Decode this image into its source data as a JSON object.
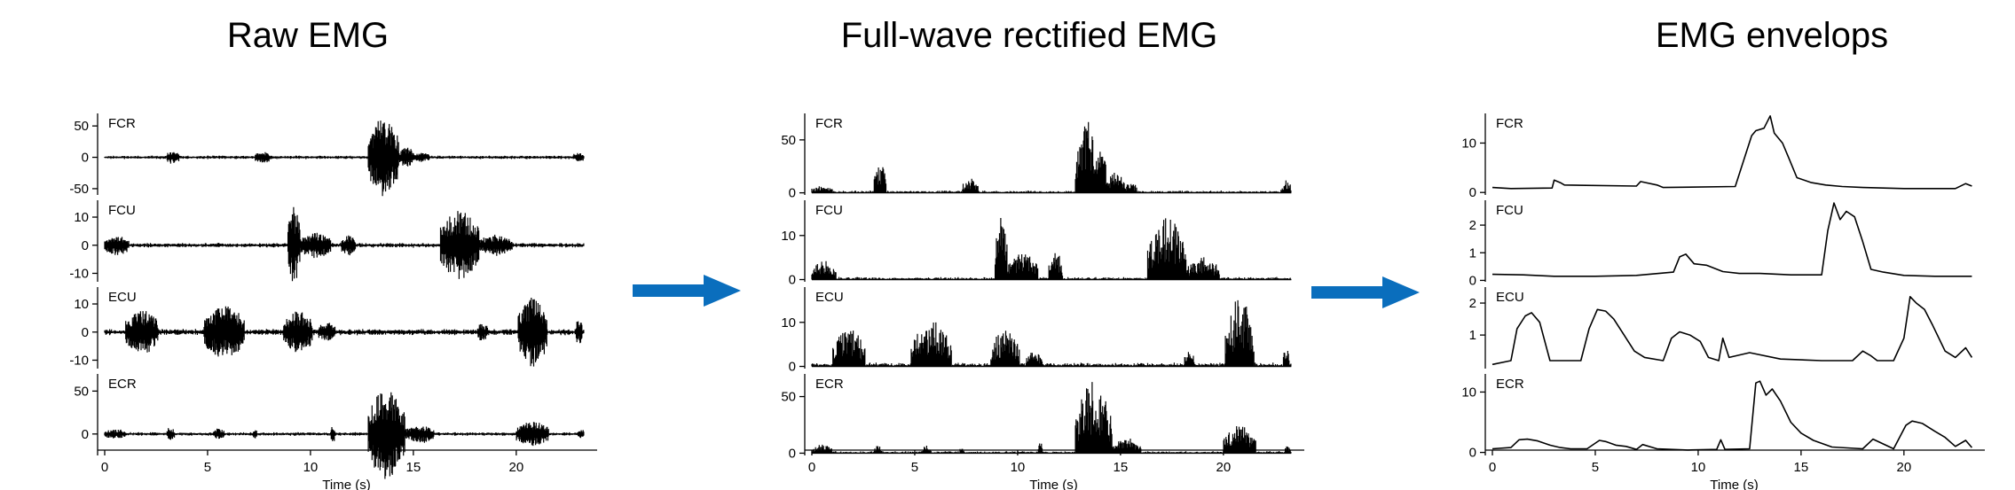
{
  "colors": {
    "trace": "#000000",
    "arrow": "#0a6ebd",
    "axis": "#000000"
  },
  "panels": [
    {
      "title": "Raw EMG"
    },
    {
      "title": "Full-wave rectified EMG"
    },
    {
      "title": "EMG envelops"
    }
  ],
  "chart_data": [
    {
      "type": "line",
      "title": "Raw EMG",
      "xlabel": "Time (s)",
      "xlim": [
        0,
        23.5
      ],
      "xticks": [
        0,
        5,
        10,
        15,
        20
      ],
      "kind": "raw",
      "subplots": [
        {
          "label": "FCR",
          "ylim": [
            -60,
            70
          ],
          "yticks": [
            -50,
            0,
            50
          ],
          "baseline": 0,
          "bursts": [
            [
              3.0,
              3.6,
              8
            ],
            [
              7.3,
              8.1,
              7
            ],
            [
              12.8,
              14.3,
              62
            ],
            [
              14.3,
              15.0,
              14
            ],
            [
              15.0,
              15.8,
              5
            ],
            [
              22.8,
              23.3,
              6
            ]
          ],
          "noise": 2
        },
        {
          "label": "FCU",
          "ylim": [
            -13,
            16
          ],
          "yticks": [
            -10,
            0,
            10
          ],
          "baseline": 0,
          "bursts": [
            [
              0.0,
              1.2,
              3
            ],
            [
              8.9,
              9.5,
              13
            ],
            [
              9.5,
              11.0,
              4
            ],
            [
              11.5,
              12.2,
              3
            ],
            [
              16.3,
              18.2,
              12
            ],
            [
              18.2,
              19.8,
              3
            ]
          ],
          "noise": 0.6
        },
        {
          "label": "ECU",
          "ylim": [
            -13,
            16
          ],
          "yticks": [
            -10,
            0,
            10
          ],
          "baseline": 0,
          "bursts": [
            [
              1.0,
              2.6,
              7
            ],
            [
              4.8,
              6.8,
              8.5
            ],
            [
              8.7,
              10.1,
              6.5
            ],
            [
              10.4,
              11.2,
              2.5
            ],
            [
              18.1,
              18.6,
              2.5
            ],
            [
              20.1,
              21.5,
              12
            ],
            [
              22.9,
              23.2,
              4
            ]
          ],
          "noise": 0.8
        },
        {
          "label": "ECR",
          "ylim": [
            -25,
            70
          ],
          "yticks": [
            0,
            50
          ],
          "baseline": 0,
          "bursts": [
            [
              0.0,
              1.0,
              4
            ],
            [
              3.0,
              3.4,
              6
            ],
            [
              5.3,
              5.8,
              5
            ],
            [
              7.2,
              7.4,
              4
            ],
            [
              11.0,
              11.2,
              9
            ],
            [
              12.8,
              14.6,
              52
            ],
            [
              14.6,
              16.0,
              9
            ],
            [
              20.0,
              21.6,
              13
            ],
            [
              23.0,
              23.3,
              4
            ]
          ],
          "noise": 1.5
        }
      ]
    },
    {
      "type": "line",
      "title": "Full-wave rectified EMG",
      "xlabel": "Time (s)",
      "xlim": [
        0,
        23.5
      ],
      "xticks": [
        0,
        5,
        10,
        15,
        20
      ],
      "kind": "rect",
      "subplots": [
        {
          "label": "FCR",
          "ylim": [
            -2,
            75
          ],
          "yticks": [
            0,
            50
          ],
          "baseline": 0,
          "bursts": [
            [
              0.0,
              1.0,
              5
            ],
            [
              3.0,
              3.6,
              28
            ],
            [
              7.3,
              8.1,
              12
            ],
            [
              12.8,
              14.3,
              68
            ],
            [
              14.3,
              15.2,
              18
            ],
            [
              15.2,
              15.8,
              8
            ],
            [
              22.8,
              23.3,
              10
            ]
          ],
          "noise": 1.5
        },
        {
          "label": "FCU",
          "ylim": [
            -0.5,
            18
          ],
          "yticks": [
            0,
            10
          ],
          "baseline": 0,
          "bursts": [
            [
              0.0,
              1.2,
              4
            ],
            [
              8.9,
              9.5,
              15
            ],
            [
              9.5,
              11.0,
              6
            ],
            [
              11.5,
              12.2,
              6
            ],
            [
              16.3,
              18.2,
              14
            ],
            [
              18.2,
              19.8,
              5
            ]
          ],
          "noise": 0.4
        },
        {
          "label": "ECU",
          "ylim": [
            -0.5,
            18
          ],
          "yticks": [
            0,
            10
          ],
          "baseline": 0,
          "bursts": [
            [
              1.0,
              2.6,
              8
            ],
            [
              4.8,
              6.8,
              10
            ],
            [
              8.7,
              10.1,
              8
            ],
            [
              10.4,
              11.2,
              3
            ],
            [
              18.1,
              18.6,
              3
            ],
            [
              20.1,
              21.5,
              15
            ],
            [
              22.9,
              23.2,
              4
            ]
          ],
          "noise": 0.6
        },
        {
          "label": "ECR",
          "ylim": [
            -2,
            70
          ],
          "yticks": [
            0,
            50
          ],
          "baseline": 0,
          "bursts": [
            [
              0.0,
              1.0,
              6
            ],
            [
              3.0,
              3.4,
              6
            ],
            [
              5.3,
              5.8,
              5
            ],
            [
              7.2,
              7.4,
              4
            ],
            [
              11.0,
              11.2,
              10
            ],
            [
              12.8,
              14.6,
              65
            ],
            [
              14.6,
              16.0,
              12
            ],
            [
              20.0,
              21.6,
              24
            ],
            [
              23.0,
              23.3,
              5
            ]
          ],
          "noise": 1.3
        }
      ]
    },
    {
      "type": "line",
      "title": "EMG envelops",
      "xlabel": "Time (s)",
      "xlim": [
        0,
        23.5
      ],
      "xticks": [
        0,
        5,
        10,
        15,
        20
      ],
      "kind": "env",
      "subplots": [
        {
          "label": "FCR",
          "ylim": [
            -0.5,
            16
          ],
          "yticks": [
            0,
            10
          ],
          "x": [
            0,
            0.9,
            0.9,
            2.9,
            3.0,
            3.3,
            3.5,
            7.0,
            7.2,
            8.0,
            8.3,
            11.8,
            12.6,
            12.8,
            13.2,
            13.5,
            13.7,
            14.1,
            14.4,
            14.8,
            15.5,
            16.2,
            17.0,
            18.0,
            19.0,
            20.0,
            22.5,
            23.0,
            23.3
          ],
          "y": [
            1.0,
            0.8,
            0.8,
            0.9,
            2.5,
            2.0,
            1.5,
            1.3,
            2.2,
            1.5,
            1.0,
            1.2,
            11.5,
            12.5,
            13.0,
            15.5,
            12.0,
            10.0,
            7.0,
            3.0,
            2.0,
            1.5,
            1.2,
            1.0,
            0.9,
            0.8,
            0.8,
            1.8,
            1.3
          ]
        },
        {
          "label": "FCU",
          "ylim": [
            -0.05,
            2.9
          ],
          "yticks": [
            0,
            1,
            2
          ],
          "x": [
            0,
            1.5,
            3.0,
            5.0,
            7.0,
            8.8,
            9.1,
            9.4,
            9.8,
            10.4,
            11.2,
            12.0,
            13.0,
            14.5,
            16.0,
            16.3,
            16.6,
            16.9,
            17.2,
            17.6,
            18.0,
            18.4,
            19.0,
            20.0,
            21.5,
            23.3
          ],
          "y": [
            0.22,
            0.2,
            0.15,
            0.15,
            0.18,
            0.3,
            0.85,
            0.95,
            0.6,
            0.55,
            0.32,
            0.25,
            0.25,
            0.2,
            0.2,
            1.8,
            2.8,
            2.2,
            2.5,
            2.3,
            1.4,
            0.4,
            0.3,
            0.18,
            0.15,
            0.15
          ]
        },
        {
          "label": "ECU",
          "ylim": [
            -0.05,
            2.5
          ],
          "yticks": [
            1,
            2
          ],
          "x": [
            0,
            0.9,
            1.2,
            1.6,
            1.9,
            2.3,
            2.8,
            4.3,
            4.7,
            5.1,
            5.5,
            5.9,
            6.4,
            6.9,
            7.4,
            8.3,
            8.7,
            9.1,
            9.6,
            10.1,
            10.5,
            11.0,
            11.2,
            11.5,
            12.5,
            14.0,
            16.0,
            17.5,
            18.0,
            18.4,
            18.7,
            19.5,
            20.0,
            20.3,
            20.6,
            21.0,
            21.4,
            22.0,
            22.5,
            23.0,
            23.3
          ],
          "y": [
            0.08,
            0.2,
            1.2,
            1.6,
            1.7,
            1.4,
            0.2,
            0.2,
            1.2,
            1.8,
            1.75,
            1.5,
            1.0,
            0.5,
            0.3,
            0.2,
            0.9,
            1.1,
            1.0,
            0.8,
            0.3,
            0.2,
            0.9,
            0.3,
            0.45,
            0.25,
            0.2,
            0.2,
            0.5,
            0.35,
            0.2,
            0.2,
            0.9,
            2.2,
            2.0,
            1.8,
            1.3,
            0.5,
            0.3,
            0.6,
            0.3
          ]
        },
        {
          "label": "ECR",
          "ylim": [
            -0.5,
            13
          ],
          "yticks": [
            0,
            10
          ],
          "x": [
            0,
            0.9,
            1.3,
            1.7,
            2.2,
            2.8,
            3.3,
            3.8,
            4.6,
            5.2,
            5.5,
            6.0,
            6.5,
            7.0,
            7.3,
            8.0,
            9.5,
            10.9,
            11.1,
            11.3,
            12.5,
            12.8,
            13.0,
            13.3,
            13.6,
            14.0,
            14.5,
            15.0,
            15.6,
            16.5,
            18.0,
            18.5,
            19.5,
            20.1,
            20.4,
            20.9,
            21.5,
            22.0,
            22.5,
            23.0,
            23.3
          ],
          "y": [
            0.6,
            0.8,
            2.1,
            2.2,
            1.9,
            1.2,
            0.8,
            0.6,
            0.6,
            2.0,
            1.8,
            1.2,
            1.0,
            0.5,
            1.3,
            0.6,
            0.4,
            0.5,
            2.1,
            0.5,
            0.6,
            11.5,
            11.8,
            9.5,
            10.5,
            8.5,
            5.0,
            3.2,
            2.0,
            0.9,
            0.6,
            2.2,
            0.6,
            4.5,
            5.2,
            4.8,
            3.5,
            2.5,
            1.0,
            2.0,
            0.8
          ]
        }
      ]
    }
  ]
}
